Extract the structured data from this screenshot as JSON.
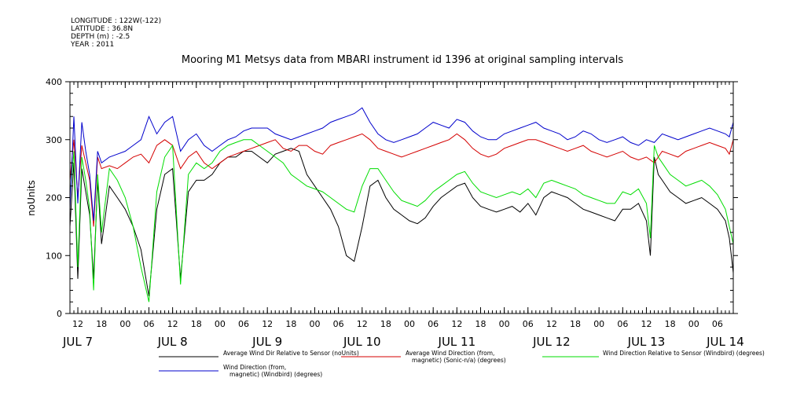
{
  "header": {
    "meta": [
      "LONGITUDE : 122W(-122)",
      "LATITUDE : 36.8N",
      "DEPTH (m) : -2.5",
      "YEAR : 2011"
    ]
  },
  "chart_data": {
    "type": "line",
    "title": "Mooring M1 Metsys data from MBARI instrument id 1396 at original sampling intervals",
    "ylabel": "noUnits",
    "ylim": [
      0,
      400
    ],
    "yticks": [
      0,
      100,
      200,
      300,
      400
    ],
    "xlim_hours": [
      10,
      178
    ],
    "hour_tick_labels": [
      {
        "h": 12,
        "label": "12"
      },
      {
        "h": 18,
        "label": "18"
      },
      {
        "h": 24,
        "label": "00"
      },
      {
        "h": 30,
        "label": "06"
      },
      {
        "h": 36,
        "label": "12"
      },
      {
        "h": 42,
        "label": "18"
      },
      {
        "h": 48,
        "label": "00"
      },
      {
        "h": 54,
        "label": "06"
      },
      {
        "h": 60,
        "label": "12"
      },
      {
        "h": 66,
        "label": "18"
      },
      {
        "h": 72,
        "label": "00"
      },
      {
        "h": 78,
        "label": "06"
      },
      {
        "h": 84,
        "label": "12"
      },
      {
        "h": 90,
        "label": "18"
      },
      {
        "h": 96,
        "label": "00"
      },
      {
        "h": 102,
        "label": "06"
      },
      {
        "h": 108,
        "label": "12"
      },
      {
        "h": 114,
        "label": "18"
      },
      {
        "h": 120,
        "label": "00"
      },
      {
        "h": 126,
        "label": "06"
      },
      {
        "h": 132,
        "label": "12"
      },
      {
        "h": 138,
        "label": "18"
      },
      {
        "h": 144,
        "label": "00"
      },
      {
        "h": 150,
        "label": "06"
      },
      {
        "h": 156,
        "label": "12"
      },
      {
        "h": 162,
        "label": "18"
      },
      {
        "h": 168,
        "label": "00"
      },
      {
        "h": 174,
        "label": "06"
      }
    ],
    "day_labels": [
      {
        "h": 12,
        "label": "JUL  7"
      },
      {
        "h": 36,
        "label": "JUL  8"
      },
      {
        "h": 60,
        "label": "JUL  9"
      },
      {
        "h": 84,
        "label": "JUL 10"
      },
      {
        "h": 108,
        "label": "JUL 11"
      },
      {
        "h": 132,
        "label": "JUL 12"
      },
      {
        "h": 156,
        "label": "JUL 13"
      },
      {
        "h": 176,
        "label": "JUL 14"
      }
    ],
    "series": [
      {
        "name": "Average Wind Dir Relative to Sensor (noUnits)",
        "color": "#000000",
        "x": [
          10,
          11,
          12,
          13,
          14,
          15,
          16,
          17,
          18,
          20,
          22,
          24,
          26,
          28,
          30,
          32,
          34,
          36,
          38,
          40,
          42,
          44,
          46,
          48,
          50,
          52,
          54,
          56,
          58,
          60,
          62,
          64,
          66,
          68,
          70,
          72,
          74,
          76,
          78,
          80,
          82,
          84,
          86,
          88,
          90,
          92,
          94,
          96,
          98,
          100,
          102,
          104,
          106,
          108,
          110,
          112,
          114,
          116,
          118,
          120,
          122,
          124,
          126,
          128,
          130,
          132,
          134,
          136,
          138,
          140,
          142,
          144,
          146,
          148,
          150,
          152,
          154,
          156,
          157,
          158,
          159,
          160,
          162,
          164,
          166,
          168,
          170,
          172,
          174,
          176,
          177,
          178
        ],
        "y": [
          150,
          260,
          60,
          250,
          210,
          170,
          60,
          230,
          120,
          220,
          200,
          180,
          150,
          110,
          30,
          180,
          240,
          250,
          60,
          210,
          230,
          230,
          240,
          260,
          270,
          270,
          280,
          280,
          270,
          260,
          275,
          280,
          285,
          280,
          240,
          220,
          200,
          180,
          150,
          100,
          90,
          150,
          220,
          230,
          200,
          180,
          170,
          160,
          155,
          165,
          185,
          200,
          210,
          220,
          225,
          200,
          185,
          180,
          175,
          180,
          185,
          175,
          190,
          170,
          200,
          210,
          205,
          200,
          190,
          180,
          175,
          170,
          165,
          160,
          180,
          180,
          190,
          160,
          100,
          270,
          240,
          230,
          210,
          200,
          190,
          195,
          200,
          190,
          180,
          160,
          130,
          70
        ]
      },
      {
        "name": "Average Wind Direction (from, magnetic) (Sonic-n/a) (degrees)",
        "color": "#d40000",
        "x": [
          10,
          11,
          12,
          13,
          14,
          15,
          16,
          17,
          18,
          20,
          22,
          24,
          26,
          28,
          30,
          32,
          34,
          36,
          38,
          40,
          42,
          44,
          46,
          48,
          50,
          52,
          54,
          56,
          58,
          60,
          62,
          64,
          66,
          68,
          70,
          72,
          74,
          76,
          78,
          80,
          82,
          84,
          86,
          88,
          90,
          92,
          94,
          96,
          98,
          100,
          102,
          104,
          106,
          108,
          110,
          112,
          114,
          116,
          118,
          120,
          122,
          124,
          126,
          128,
          130,
          132,
          134,
          136,
          138,
          140,
          142,
          144,
          146,
          148,
          150,
          152,
          154,
          156,
          158,
          160,
          162,
          164,
          166,
          168,
          170,
          172,
          174,
          176,
          177,
          178
        ],
        "y": [
          230,
          300,
          200,
          290,
          260,
          230,
          150,
          270,
          250,
          255,
          250,
          260,
          270,
          275,
          260,
          290,
          300,
          290,
          250,
          270,
          280,
          260,
          250,
          260,
          270,
          275,
          280,
          285,
          290,
          295,
          300,
          285,
          280,
          290,
          290,
          280,
          275,
          290,
          295,
          300,
          305,
          310,
          300,
          285,
          280,
          275,
          270,
          275,
          280,
          285,
          290,
          295,
          300,
          310,
          300,
          285,
          275,
          270,
          275,
          285,
          290,
          295,
          300,
          300,
          295,
          290,
          285,
          280,
          285,
          290,
          280,
          275,
          270,
          275,
          280,
          270,
          265,
          270,
          260,
          280,
          275,
          270,
          280,
          285,
          290,
          295,
          290,
          285,
          275,
          300
        ]
      },
      {
        "name": "Wind Direction Relative to Sensor (Windbird) (degrees)",
        "color": "#00dd00",
        "x": [
          10,
          11,
          12,
          13,
          14,
          15,
          16,
          17,
          18,
          20,
          22,
          24,
          26,
          28,
          30,
          32,
          34,
          36,
          38,
          40,
          42,
          44,
          46,
          48,
          50,
          52,
          54,
          56,
          58,
          60,
          62,
          64,
          66,
          68,
          70,
          72,
          74,
          76,
          78,
          80,
          82,
          84,
          86,
          88,
          90,
          92,
          94,
          96,
          98,
          100,
          102,
          104,
          106,
          108,
          110,
          112,
          114,
          116,
          118,
          120,
          122,
          124,
          126,
          128,
          130,
          132,
          134,
          136,
          138,
          140,
          142,
          144,
          146,
          148,
          150,
          152,
          154,
          156,
          157,
          158,
          159,
          160,
          162,
          164,
          166,
          168,
          170,
          172,
          174,
          176,
          177,
          178
        ],
        "y": [
          200,
          280,
          80,
          270,
          230,
          180,
          40,
          240,
          140,
          250,
          230,
          200,
          150,
          80,
          20,
          210,
          270,
          290,
          50,
          240,
          260,
          250,
          260,
          280,
          290,
          295,
          300,
          300,
          290,
          280,
          270,
          260,
          240,
          230,
          220,
          215,
          210,
          200,
          190,
          180,
          175,
          220,
          250,
          250,
          230,
          210,
          195,
          190,
          185,
          195,
          210,
          220,
          230,
          240,
          245,
          225,
          210,
          205,
          200,
          205,
          210,
          205,
          215,
          200,
          225,
          230,
          225,
          220,
          215,
          205,
          200,
          195,
          190,
          190,
          210,
          205,
          215,
          190,
          130,
          290,
          270,
          260,
          240,
          230,
          220,
          225,
          230,
          220,
          205,
          180,
          150,
          120
        ]
      },
      {
        "name": "Wind Direction (from, magnetic) (Windbird) (degrees)",
        "color": "#0000cc",
        "x": [
          10,
          11,
          12,
          13,
          14,
          15,
          16,
          17,
          18,
          20,
          22,
          24,
          26,
          28,
          30,
          32,
          34,
          36,
          38,
          40,
          42,
          44,
          46,
          48,
          50,
          52,
          54,
          56,
          58,
          60,
          62,
          64,
          66,
          68,
          70,
          72,
          74,
          76,
          78,
          80,
          82,
          84,
          86,
          88,
          90,
          92,
          94,
          96,
          98,
          100,
          102,
          104,
          106,
          108,
          110,
          112,
          114,
          116,
          118,
          120,
          122,
          124,
          126,
          128,
          130,
          132,
          134,
          136,
          138,
          140,
          142,
          144,
          146,
          148,
          150,
          152,
          154,
          156,
          158,
          160,
          162,
          164,
          166,
          168,
          170,
          172,
          174,
          176,
          177,
          178
        ],
        "y": [
          180,
          340,
          190,
          330,
          280,
          240,
          160,
          280,
          260,
          270,
          275,
          280,
          290,
          300,
          340,
          310,
          330,
          340,
          280,
          300,
          310,
          290,
          280,
          290,
          300,
          305,
          315,
          320,
          320,
          320,
          310,
          305,
          300,
          305,
          310,
          315,
          320,
          330,
          335,
          340,
          345,
          355,
          330,
          310,
          300,
          295,
          300,
          305,
          310,
          320,
          330,
          325,
          320,
          335,
          330,
          315,
          305,
          300,
          300,
          310,
          315,
          320,
          325,
          330,
          320,
          315,
          310,
          300,
          305,
          315,
          310,
          300,
          295,
          300,
          305,
          295,
          290,
          300,
          295,
          310,
          305,
          300,
          305,
          310,
          315,
          320,
          315,
          310,
          305,
          330
        ]
      }
    ]
  },
  "legend": {
    "entries": [
      {
        "lines": [
          "Average Wind Dir Relative to Sensor (noUnits)"
        ],
        "color": "#000000"
      },
      {
        "lines": [
          "Average Wind Direction (from,",
          "magnetic) (Sonic-n/a) (degrees)"
        ],
        "color": "#d40000"
      },
      {
        "lines": [
          "Wind Direction Relative to Sensor (Windbird) (degrees)"
        ],
        "color": "#00dd00"
      },
      {
        "lines": [
          "Wind Direction (from,",
          "magnetic) (Windbird) (degrees)"
        ],
        "color": "#0000cc"
      }
    ]
  }
}
